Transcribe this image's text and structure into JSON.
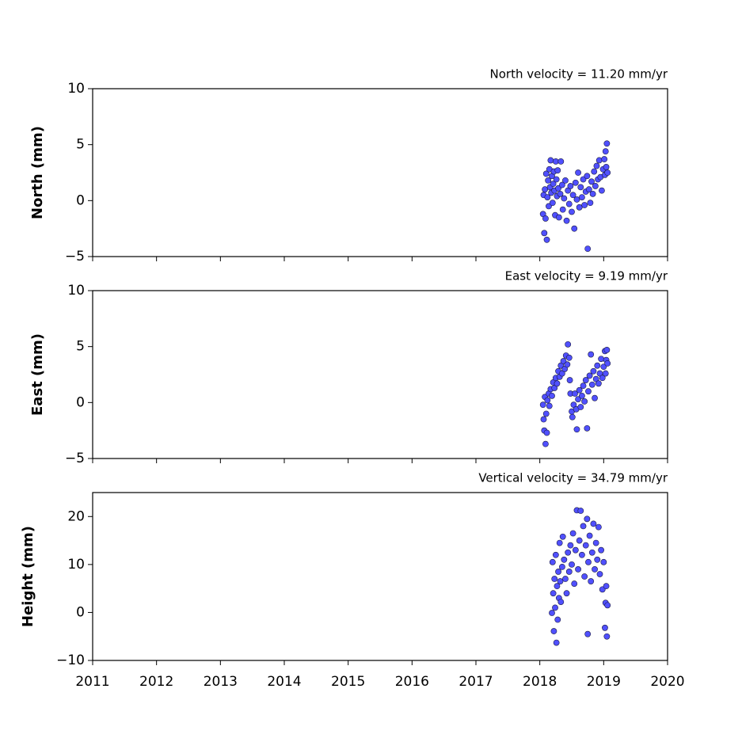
{
  "chart_data": [
    {
      "type": "scatter",
      "title": "North velocity = 11.20 mm/yr",
      "ylabel": "North (mm)",
      "color": "#5050ff",
      "xlim": [
        2011,
        2020
      ],
      "xticks": [
        2011,
        2012,
        2013,
        2014,
        2015,
        2016,
        2017,
        2018,
        2019,
        2020
      ],
      "ylim": [
        -5,
        10
      ],
      "yticks": [
        {
          "value": -5,
          "label": "−5"
        },
        0,
        5,
        10
      ],
      "x": [
        2018.05,
        2018.06,
        2018.07,
        2018.08,
        2018.09,
        2018.1,
        2018.11,
        2018.12,
        2018.13,
        2018.14,
        2018.15,
        2018.16,
        2018.17,
        2018.18,
        2018.19,
        2018.2,
        2018.21,
        2018.22,
        2018.23,
        2018.24,
        2018.25,
        2018.26,
        2018.27,
        2018.28,
        2018.29,
        2018.3,
        2018.32,
        2018.33,
        2018.35,
        2018.36,
        2018.38,
        2018.4,
        2018.42,
        2018.44,
        2018.46,
        2018.48,
        2018.5,
        2018.52,
        2018.54,
        2018.56,
        2018.58,
        2018.6,
        2018.62,
        2018.64,
        2018.66,
        2018.68,
        2018.7,
        2018.72,
        2018.74,
        2018.75,
        2018.77,
        2018.79,
        2018.81,
        2018.83,
        2018.85,
        2018.87,
        2018.89,
        2018.91,
        2018.93,
        2018.95,
        2018.97,
        2018.99,
        2019.01,
        2019.02,
        2019.03,
        2019.04,
        2019.05,
        2019.06
      ],
      "values": [
        -1.2,
        0.5,
        -2.9,
        1.0,
        -1.6,
        2.4,
        -3.5,
        0.3,
        1.8,
        -0.5,
        2.8,
        1.2,
        3.6,
        0.7,
        2.2,
        -0.2,
        1.5,
        2.6,
        0.9,
        -1.3,
        3.5,
        1.9,
        0.4,
        2.7,
        1.1,
        -1.5,
        0.6,
        3.5,
        1.4,
        -0.8,
        0.2,
        1.8,
        -1.8,
        0.9,
        -0.3,
        1.3,
        -1.0,
        0.5,
        -2.5,
        1.6,
        0.1,
        2.5,
        -0.6,
        1.2,
        0.3,
        1.9,
        -0.4,
        0.8,
        2.2,
        -4.3,
        1.0,
        -0.2,
        1.7,
        0.6,
        2.6,
        1.3,
        3.1,
        1.9,
        3.6,
        2.1,
        0.9,
        2.8,
        3.7,
        2.3,
        4.4,
        3.0,
        5.1,
        2.5
      ]
    },
    {
      "type": "scatter",
      "title": "East velocity = 9.19 mm/yr",
      "ylabel": "East (mm)",
      "color": "#5050ff",
      "xlim": [
        2011,
        2020
      ],
      "xticks": [
        2011,
        2012,
        2013,
        2014,
        2015,
        2016,
        2017,
        2018,
        2019,
        2020
      ],
      "ylim": [
        -5,
        10
      ],
      "yticks": [
        {
          "value": -5,
          "label": "−5"
        },
        0,
        5,
        10
      ],
      "x": [
        2018.05,
        2018.06,
        2018.07,
        2018.08,
        2018.09,
        2018.1,
        2018.11,
        2018.12,
        2018.14,
        2018.15,
        2018.17,
        2018.19,
        2018.21,
        2018.23,
        2018.25,
        2018.27,
        2018.29,
        2018.31,
        2018.33,
        2018.35,
        2018.37,
        2018.39,
        2018.41,
        2018.43,
        2018.44,
        2018.46,
        2018.47,
        2018.48,
        2018.5,
        2018.51,
        2018.53,
        2018.55,
        2018.57,
        2018.58,
        2018.6,
        2018.62,
        2018.64,
        2018.66,
        2018.68,
        2018.7,
        2018.72,
        2018.74,
        2018.76,
        2018.78,
        2018.8,
        2018.82,
        2018.84,
        2018.86,
        2018.88,
        2018.9,
        2018.92,
        2018.94,
        2018.96,
        2018.98,
        2019.0,
        2019.02,
        2019.03,
        2019.04,
        2019.05,
        2019.06
      ],
      "values": [
        -0.2,
        -1.5,
        -2.5,
        0.5,
        -3.7,
        -1.0,
        -2.7,
        0.2,
        0.8,
        -0.3,
        1.2,
        0.6,
        1.8,
        1.3,
        2.2,
        1.7,
        2.8,
        2.3,
        3.3,
        2.6,
        3.7,
        3.0,
        4.2,
        3.4,
        5.2,
        4.0,
        2.0,
        0.8,
        -0.8,
        -1.3,
        -0.2,
        0.8,
        -0.6,
        -2.4,
        0.3,
        1.1,
        -0.4,
        0.6,
        1.5,
        0.1,
        2.0,
        -2.3,
        1.0,
        2.4,
        4.3,
        1.6,
        2.8,
        0.4,
        2.1,
        3.3,
        1.7,
        2.6,
        3.9,
        2.2,
        3.2,
        4.6,
        2.6,
        3.8,
        4.7,
        3.5
      ]
    },
    {
      "type": "scatter",
      "title": "Vertical velocity = 34.79 mm/yr",
      "ylabel": "Height (mm)",
      "color": "#5050ff",
      "xlim": [
        2011,
        2020
      ],
      "xticks": [
        2011,
        2012,
        2013,
        2014,
        2015,
        2016,
        2017,
        2018,
        2019,
        2020
      ],
      "ylim": [
        -10,
        25
      ],
      "yticks": [
        {
          "value": -10,
          "label": "−10"
        },
        0,
        10,
        20
      ],
      "x": [
        2018.19,
        2018.2,
        2018.21,
        2018.22,
        2018.23,
        2018.24,
        2018.25,
        2018.26,
        2018.27,
        2018.28,
        2018.29,
        2018.3,
        2018.31,
        2018.32,
        2018.33,
        2018.35,
        2018.36,
        2018.38,
        2018.4,
        2018.42,
        2018.44,
        2018.46,
        2018.48,
        2018.5,
        2018.52,
        2018.54,
        2018.56,
        2018.58,
        2018.6,
        2018.62,
        2018.64,
        2018.66,
        2018.68,
        2018.7,
        2018.72,
        2018.74,
        2018.75,
        2018.76,
        2018.78,
        2018.8,
        2018.82,
        2018.84,
        2018.86,
        2018.88,
        2018.9,
        2018.92,
        2018.94,
        2018.96,
        2018.98,
        2019.0,
        2019.02,
        2019.03,
        2019.04,
        2019.05,
        2019.06
      ],
      "values": [
        -0.1,
        10.5,
        4.0,
        -3.9,
        7.0,
        1.0,
        12.0,
        -6.3,
        5.5,
        -1.5,
        8.5,
        3.0,
        14.5,
        6.5,
        2.2,
        9.5,
        15.8,
        11.0,
        7.0,
        4.0,
        12.5,
        8.5,
        14.0,
        10.0,
        16.5,
        6.0,
        13.0,
        21.3,
        9.0,
        15.0,
        21.2,
        12.0,
        18.0,
        7.5,
        14.0,
        19.5,
        -4.5,
        10.5,
        16.0,
        6.5,
        12.5,
        18.5,
        9.0,
        14.5,
        11.0,
        17.8,
        8.0,
        13.0,
        4.8,
        10.5,
        -3.2,
        2.0,
        5.5,
        -5.0,
        1.5
      ]
    }
  ]
}
